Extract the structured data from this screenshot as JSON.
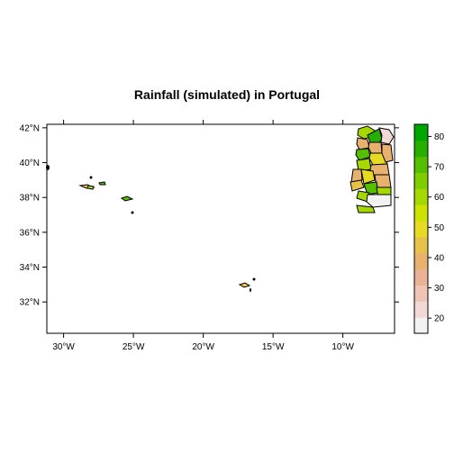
{
  "map": {
    "title": "Rainfall (simulated) in Portugal",
    "x_ticks": [
      {
        "value": -30,
        "label": "30°W"
      },
      {
        "value": -25,
        "label": "25°W"
      },
      {
        "value": -20,
        "label": "20°W"
      },
      {
        "value": -15,
        "label": "15°W"
      },
      {
        "value": -10,
        "label": "10°W"
      }
    ],
    "y_ticks": [
      {
        "value": 42,
        "label": "42°N"
      },
      {
        "value": 40,
        "label": "40°N"
      },
      {
        "value": 38,
        "label": "38°N"
      },
      {
        "value": 36,
        "label": "36°N"
      },
      {
        "value": 34,
        "label": "34°N"
      },
      {
        "value": 32,
        "label": "32°N"
      }
    ],
    "x_range": [
      -31.2,
      -6.3
    ],
    "y_range": [
      30.2,
      42.2
    ],
    "legend": {
      "min": 15,
      "max": 84,
      "ticks": [
        20,
        30,
        40,
        50,
        60,
        70,
        80
      ],
      "colors": [
        "#F2F2F2",
        "#F2D9D5",
        "#EFC4B5",
        "#EBB396",
        "#E8B16E",
        "#E6C24A",
        "#E6DA22",
        "#CCE200",
        "#A6D800",
        "#7FCC00",
        "#55BE00",
        "#26AF00",
        "#00A600"
      ]
    }
  }
}
